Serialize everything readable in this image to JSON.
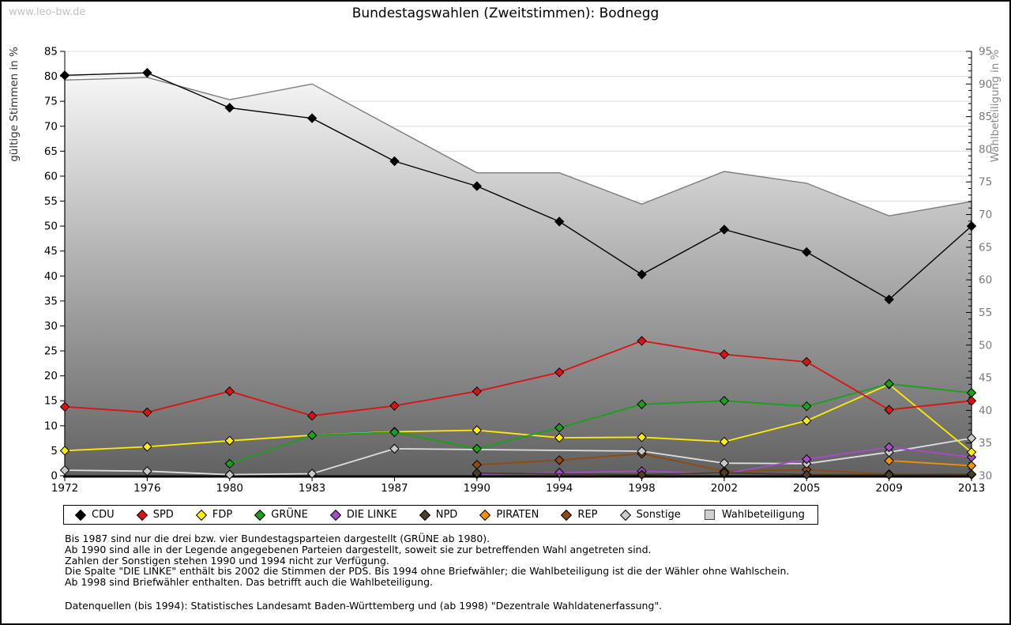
{
  "watermark": "www.leo-bw.de",
  "footnotes": [
    "Bis 1987 sind nur die drei bzw. vier Bundestagsparteien dargestellt (GRÜNE ab 1980).",
    "Ab 1990 sind alle in der Legende angegebenen Parteien dargestellt, soweit sie zur betreffenden Wahl angetreten sind.",
    "Zahlen der Sonstigen stehen 1990 und 1994 nicht zur Verfügung.",
    "Die Spalte \"DIE LINKE\" enthält bis 2002 die Stimmen der PDS. Bis 1994 ohne Briefwähler; die Wahlbeteiligung ist die der Wähler ohne Wahlschein.",
    "Ab 1998 sind Briefwähler enthalten. Das betrifft auch die Wahlbeteiligung."
  ],
  "source_line": "Datenquellen (bis 1994): Statistisches Landesamt Baden-Württemberg und (ab 1998) \"Dezentrale Wahldatenerfassung\".",
  "chart_data": {
    "type": "line+area",
    "title": "Bundestagswahlen (Zweitstimmen): Bodnegg",
    "categories": [
      "1972",
      "1976",
      "1980",
      "1983",
      "1987",
      "1990",
      "1994",
      "1998",
      "2002",
      "2005",
      "2009",
      "2013"
    ],
    "y_left": {
      "label": "gültige Stimmen in %",
      "min": 0,
      "max": 85,
      "tick_step": 5
    },
    "y_right": {
      "label": "Wahlbeteiligung in %",
      "min": 30,
      "max": 95,
      "tick_step": 5,
      "minor_step": 1
    },
    "grid": true,
    "legend_position": "bottom",
    "series": [
      {
        "name": "CDU",
        "axis": "left",
        "kind": "line",
        "color": "#000000",
        "values": [
          80.2,
          80.7,
          73.7,
          71.6,
          63.0,
          58.0,
          50.9,
          40.3,
          49.3,
          44.8,
          35.3,
          50.0
        ]
      },
      {
        "name": "SPD",
        "axis": "left",
        "kind": "line",
        "color": "#de1010",
        "values": [
          13.8,
          12.7,
          16.9,
          12.0,
          14.0,
          16.9,
          20.7,
          27.0,
          24.3,
          22.8,
          13.2,
          15.0
        ]
      },
      {
        "name": "FDP",
        "axis": "left",
        "kind": "line",
        "color": "#ffee00",
        "values": [
          5.0,
          5.8,
          7.0,
          8.1,
          8.8,
          9.1,
          7.6,
          7.7,
          6.8,
          11.0,
          18.3,
          4.7
        ]
      },
      {
        "name": "GRÜNE",
        "axis": "left",
        "kind": "line",
        "color": "#17a217",
        "values": [
          null,
          null,
          2.4,
          8.1,
          8.7,
          5.4,
          9.6,
          14.3,
          15.0,
          13.9,
          18.4,
          16.6
        ]
      },
      {
        "name": "DIE LINKE",
        "axis": "left",
        "kind": "line",
        "color": "#a44ccc",
        "values": [
          null,
          null,
          null,
          null,
          null,
          0.3,
          0.6,
          0.9,
          0.4,
          3.3,
          5.7,
          3.7
        ]
      },
      {
        "name": "NPD",
        "axis": "left",
        "kind": "line",
        "color": "#4d3d26",
        "values": [
          null,
          null,
          null,
          null,
          null,
          0.5,
          null,
          0.2,
          0.6,
          0.2,
          0.2,
          0.3
        ]
      },
      {
        "name": "PIRATEN",
        "axis": "left",
        "kind": "line",
        "color": "#f19300",
        "values": [
          null,
          null,
          null,
          null,
          null,
          null,
          null,
          null,
          null,
          null,
          3.0,
          2.0
        ]
      },
      {
        "name": "REP",
        "axis": "left",
        "kind": "line",
        "color": "#8f4a0e",
        "values": [
          null,
          null,
          null,
          null,
          null,
          2.2,
          3.1,
          4.4,
          0.9,
          1.2,
          0.3,
          0.2
        ]
      },
      {
        "name": "Sonstige",
        "axis": "left",
        "kind": "line",
        "color": "#c9c9c9",
        "line_color": "#dedede",
        "values": [
          1.1,
          0.9,
          0.2,
          0.4,
          5.4,
          null,
          null,
          4.9,
          2.5,
          2.4,
          4.7,
          7.5
        ]
      },
      {
        "name": "Wahlbeteiligung",
        "axis": "right",
        "kind": "area",
        "color": "#7d7d7d",
        "fill": "gradient-white-to-gray",
        "values": [
          90.6,
          91.0,
          87.6,
          90.0,
          83.2,
          76.4,
          76.4,
          71.6,
          76.6,
          74.8,
          69.8,
          72.0
        ]
      }
    ]
  }
}
